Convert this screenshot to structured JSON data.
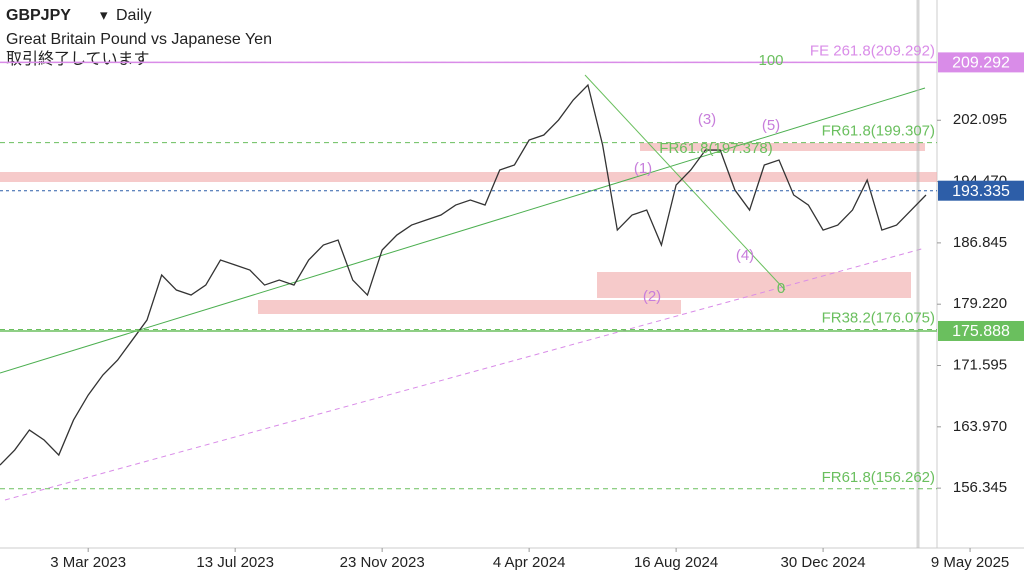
{
  "header": {
    "symbol": "GBPJPY",
    "interval": "Daily",
    "description": "Great Britain Pound vs Japanese Yen",
    "status": "取引終了しています"
  },
  "chart_data": {
    "type": "line",
    "x": [
      0,
      2,
      4,
      6,
      8,
      10,
      12,
      14,
      16,
      18,
      20,
      22,
      24,
      26,
      28,
      30,
      32,
      34,
      36,
      38,
      40,
      42,
      44,
      46,
      48,
      50,
      52,
      54,
      56,
      58,
      60,
      62,
      64,
      66,
      68,
      70,
      72,
      74,
      76,
      78,
      80,
      82,
      84,
      86,
      88,
      90,
      92,
      94,
      96,
      98,
      100,
      102,
      104,
      106,
      108,
      110,
      112,
      114,
      116,
      118,
      120,
      122,
      124,
      126
    ],
    "series": [
      {
        "color": "#333333",
        "values": [
          159.21,
          161.08,
          163.57,
          162.33,
          160.46,
          164.81,
          167.92,
          170.41,
          172.27,
          174.76,
          177.25,
          182.85,
          180.98,
          180.36,
          181.6,
          184.71,
          184.09,
          183.47,
          181.6,
          182.22,
          181.6,
          184.71,
          186.58,
          187.2,
          182.22,
          180.36,
          185.96,
          187.82,
          189.06,
          189.69,
          190.31,
          191.55,
          192.17,
          191.55,
          195.91,
          196.53,
          199.64,
          200.26,
          202.12,
          204.61,
          206.48,
          199.02,
          188.44,
          190.31,
          190.93,
          186.58,
          194.04,
          195.91,
          198.39,
          198.39,
          193.42,
          190.93,
          196.53,
          197.15,
          192.8,
          191.55,
          188.44,
          189.06,
          190.93,
          194.66,
          188.44,
          189.06,
          190.93,
          192.8
        ]
      }
    ],
    "xlim": [
      0,
      127.5
    ],
    "xticks": [
      {
        "value": 12,
        "label": "3 Mar 2023"
      },
      {
        "value": 32,
        "label": "13 Jul 2023"
      },
      {
        "value": 52,
        "label": "23 Nov 2023"
      },
      {
        "value": 72,
        "label": "4 Apr 2024"
      },
      {
        "value": 92,
        "label": "16 Aug 2024"
      },
      {
        "value": 112,
        "label": "30 Dec 2024"
      },
      {
        "value": 132,
        "label": "9 May 2025"
      }
    ],
    "ylim": [
      148.9,
      217.05
    ],
    "yticks": [
      156.345,
      {
        "value": 163.97,
        "label": "163.970"
      },
      171.595,
      {
        "value": 179.22,
        "label": "179.220"
      },
      186.845,
      {
        "value": 194.47,
        "label": "194.470"
      },
      202.095
    ],
    "levels": [
      {
        "label": "FE 261.8(209.292)",
        "value": 209.292,
        "color": "#d98ce8"
      },
      {
        "label": "FR61.8(199.307)",
        "value": 199.307,
        "color": "#6abf5e"
      },
      {
        "label": "FR38.2(176.075)",
        "value": 176.075,
        "color": "#6abf5e"
      },
      {
        "label": "FR61.8(156.262)",
        "value": 156.262,
        "color": "#6abf5e"
      }
    ],
    "price_labels": [
      {
        "value": 209.292,
        "color": "#d98ce8"
      },
      {
        "value": 193.335,
        "color": "#2d5ea8"
      },
      {
        "value": 175.888,
        "color": "#6abf5e"
      }
    ],
    "annotations": [
      "(1)",
      "(2)",
      "(3)",
      "(4)",
      "(5)",
      "FR61.8(197.378)",
      "100",
      "0"
    ]
  }
}
